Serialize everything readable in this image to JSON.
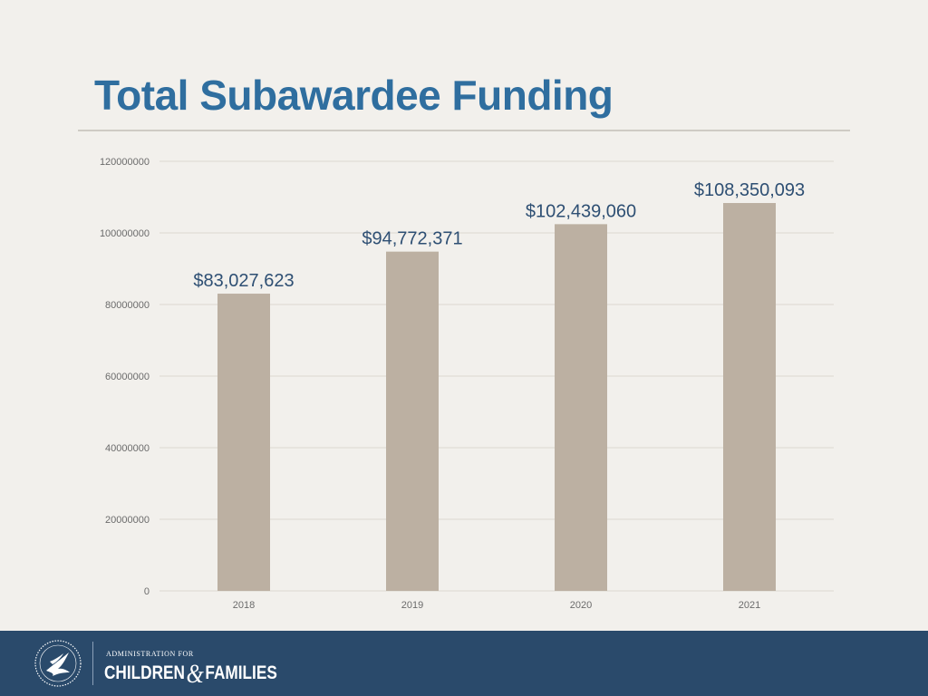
{
  "title": "Total Subawardee Funding",
  "footer": {
    "org_line": "ADMINISTRATION FOR",
    "org_word1": "CHILDREN",
    "org_amp": "&",
    "org_word2": "FAMILIES",
    "seal_icon": "hhs-eagle-seal",
    "background": "#2a4a6b"
  },
  "chart_data": {
    "type": "bar",
    "categories": [
      "2018",
      "2019",
      "2020",
      "2021"
    ],
    "values": [
      83027623,
      94772371,
      102439060,
      108350093
    ],
    "data_labels": [
      "$83,027,623",
      "$94,772,371",
      "$102,439,060",
      "$108,350,093"
    ],
    "ylim": [
      0,
      120000000
    ],
    "yticks": [
      0,
      20000000,
      40000000,
      60000000,
      80000000,
      100000000,
      120000000
    ],
    "ytick_labels": [
      "0",
      "20000000",
      "40000000",
      "60000000",
      "80000000",
      "100000000",
      "120000000"
    ],
    "title": "",
    "xlabel": "",
    "ylabel": "",
    "grid": true,
    "legend": "none",
    "bar_color": "#bcb0a2",
    "label_color": "#2e4f73"
  }
}
